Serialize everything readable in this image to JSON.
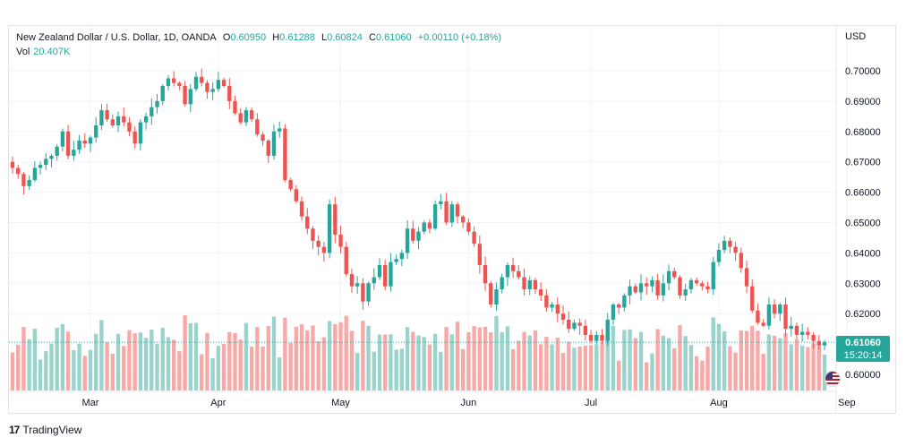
{
  "legend": {
    "symbol": "New Zealand Dollar / U.S. Dollar, 1D, OANDA",
    "o_label": "O",
    "o": "0.60950",
    "h_label": "H",
    "h": "0.61288",
    "l_label": "L",
    "l": "0.60824",
    "c_label": "C",
    "c": "0.61060",
    "change": "+0.00110 (+0.18%)",
    "vol_label": "Vol",
    "vol": "20.407K"
  },
  "currency": "USD",
  "last_price": "0.61060",
  "countdown": "15:20:14",
  "brand": "TradingView",
  "colors": {
    "up": "#26a69a",
    "down": "#ef5350",
    "up_vol": "#99d3cb",
    "down_vol": "#f7a9a7"
  },
  "chart_data": {
    "type": "candlestick",
    "y_ticks": [
      "0.60000",
      "0.61000",
      "0.62000",
      "0.63000",
      "0.64000",
      "0.65000",
      "0.66000",
      "0.67000",
      "0.68000",
      "0.69000",
      "0.70000"
    ],
    "y_range": [
      0.5955,
      0.707
    ],
    "x_ticks": [
      {
        "label": "Mar",
        "index": 14
      },
      {
        "label": "Apr",
        "index": 37
      },
      {
        "label": "May",
        "index": 59
      },
      {
        "label": "Jun",
        "index": 82
      },
      {
        "label": "Jul",
        "index": 104
      },
      {
        "label": "Aug",
        "index": 127
      },
      {
        "label": "Sep",
        "index": 150
      }
    ],
    "series": [
      {
        "name": "Close",
        "values": [
          0.668,
          0.666,
          0.662,
          0.664,
          0.668,
          0.669,
          0.671,
          0.672,
          0.675,
          0.68,
          0.672,
          0.674,
          0.677,
          0.676,
          0.678,
          0.682,
          0.687,
          0.684,
          0.682,
          0.685,
          0.683,
          0.68,
          0.676,
          0.683,
          0.685,
          0.688,
          0.69,
          0.695,
          0.6975,
          0.696,
          0.695,
          0.689,
          0.694,
          0.698,
          0.696,
          0.693,
          0.694,
          0.697,
          0.695,
          0.69,
          0.686,
          0.683,
          0.687,
          0.684,
          0.679,
          0.677,
          0.672,
          0.68,
          0.681,
          0.664,
          0.661,
          0.657,
          0.652,
          0.648,
          0.644,
          0.642,
          0.64,
          0.656,
          0.646,
          0.642,
          0.633,
          0.629,
          0.63,
          0.624,
          0.63,
          0.632,
          0.636,
          0.629,
          0.637,
          0.638,
          0.64,
          0.648,
          0.644,
          0.647,
          0.65,
          0.648,
          0.656,
          0.657,
          0.65,
          0.656,
          0.652,
          0.65,
          0.647,
          0.643,
          0.636,
          0.63,
          0.623,
          0.628,
          0.632,
          0.636,
          0.634,
          0.632,
          0.628,
          0.631,
          0.628,
          0.626,
          0.622,
          0.623,
          0.62,
          0.618,
          0.615,
          0.617,
          0.616,
          0.613,
          0.611,
          0.613,
          0.611,
          0.618,
          0.623,
          0.622,
          0.626,
          0.629,
          0.627,
          0.63,
          0.629,
          0.631,
          0.626,
          0.63,
          0.634,
          0.632,
          0.626,
          0.628,
          0.631,
          0.63,
          0.629,
          0.628,
          0.637,
          0.641,
          0.644,
          0.642,
          0.64,
          0.635,
          0.629,
          0.621,
          0.617,
          0.616,
          0.623,
          0.62,
          0.623,
          0.615,
          0.616,
          0.613,
          0.614,
          0.613,
          0.611,
          0.6095,
          0.6106
        ]
      }
    ]
  }
}
